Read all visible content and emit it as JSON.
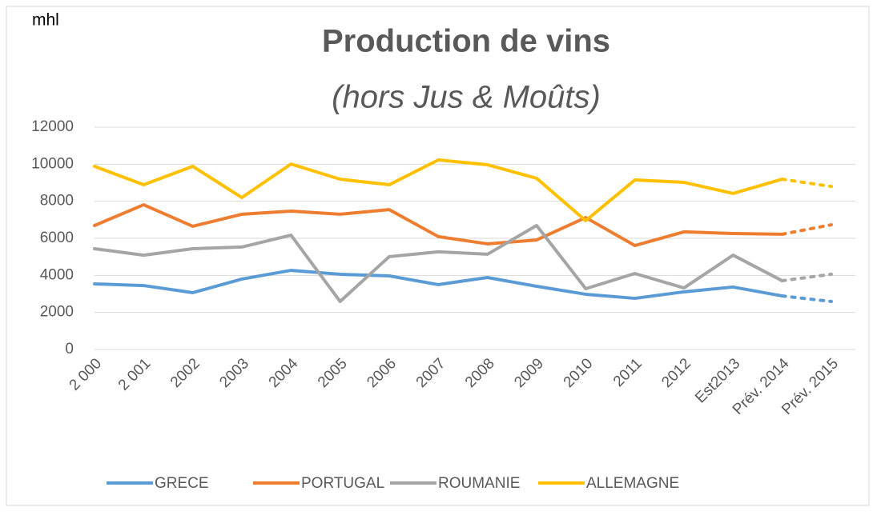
{
  "chart_data": {
    "type": "line",
    "title": "Production de vins",
    "subtitle": "(hors Jus & Moûts)",
    "y_label": "mhl",
    "categories": [
      "2 000",
      "2 001",
      "2002",
      "2003",
      "2004",
      "2005",
      "2006",
      "2007",
      "2008",
      "2009",
      "2010",
      "2011",
      "2012",
      "Est2013",
      "Prév. 2014",
      "Prév. 2015"
    ],
    "series": [
      {
        "name": "GRECE",
        "color": "#5b9bd5",
        "values": [
          3540,
          3450,
          3065,
          3800,
          4270,
          4060,
          3970,
          3500,
          3885,
          3410,
          2980,
          2760,
          3110,
          3370,
          2890,
          2590
        ]
      },
      {
        "name": "PORTUGAL",
        "color": "#ed7d31",
        "values": [
          6690,
          7810,
          6650,
          7300,
          7470,
          7300,
          7550,
          6090,
          5700,
          5910,
          7120,
          5610,
          6350,
          6260,
          6220,
          6730
        ]
      },
      {
        "name": "ROUMANIE",
        "color": "#a5a5a5",
        "values": [
          5440,
          5090,
          5440,
          5530,
          6170,
          2590,
          5010,
          5270,
          5140,
          6690,
          3280,
          4100,
          3320,
          5090,
          3710,
          4060
        ]
      },
      {
        "name": "ALLEMAGNE",
        "color": "#ffc000",
        "values": [
          9885,
          8890,
          9885,
          8200,
          10010,
          9190,
          8890,
          10230,
          9970,
          9240,
          6950,
          9150,
          9020,
          8420,
          9190,
          8800
        ]
      }
    ],
    "dashed_from_index": 14,
    "ylim": [
      0,
      12000
    ],
    "yticks": [
      0,
      2000,
      4000,
      6000,
      8000,
      10000,
      12000
    ],
    "grid": true,
    "legend": "bottom"
  }
}
